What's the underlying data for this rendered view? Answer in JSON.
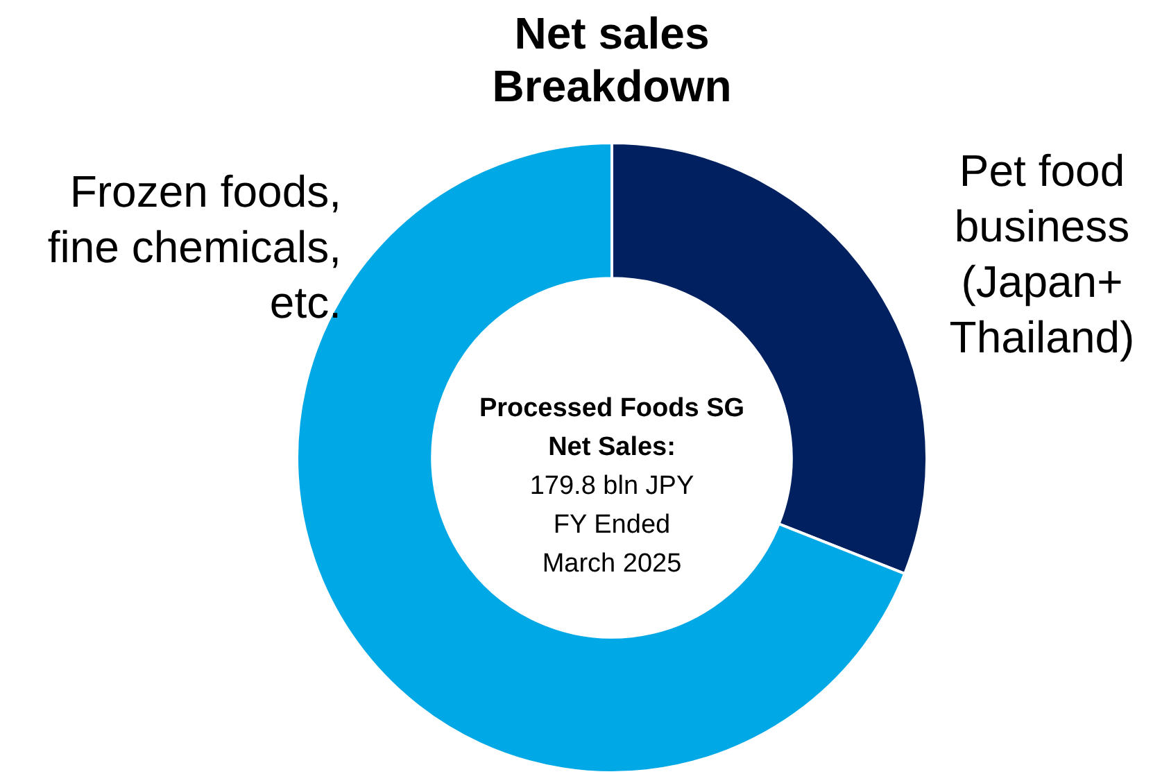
{
  "chart_data": {
    "type": "donut",
    "title": "Net sales Breakdown",
    "categories": [
      "Pet food business (Japan+ Thailand)",
      "Frozen foods, fine chemicals, etc."
    ],
    "values": [
      31,
      69
    ],
    "colors": [
      "#002060",
      "#00a8e6"
    ],
    "annotations": [
      "Processed Foods SG Net Sales:",
      "179.8 bln JPY",
      "FY Ended",
      "March 2025"
    ],
    "legend": false
  }
}
